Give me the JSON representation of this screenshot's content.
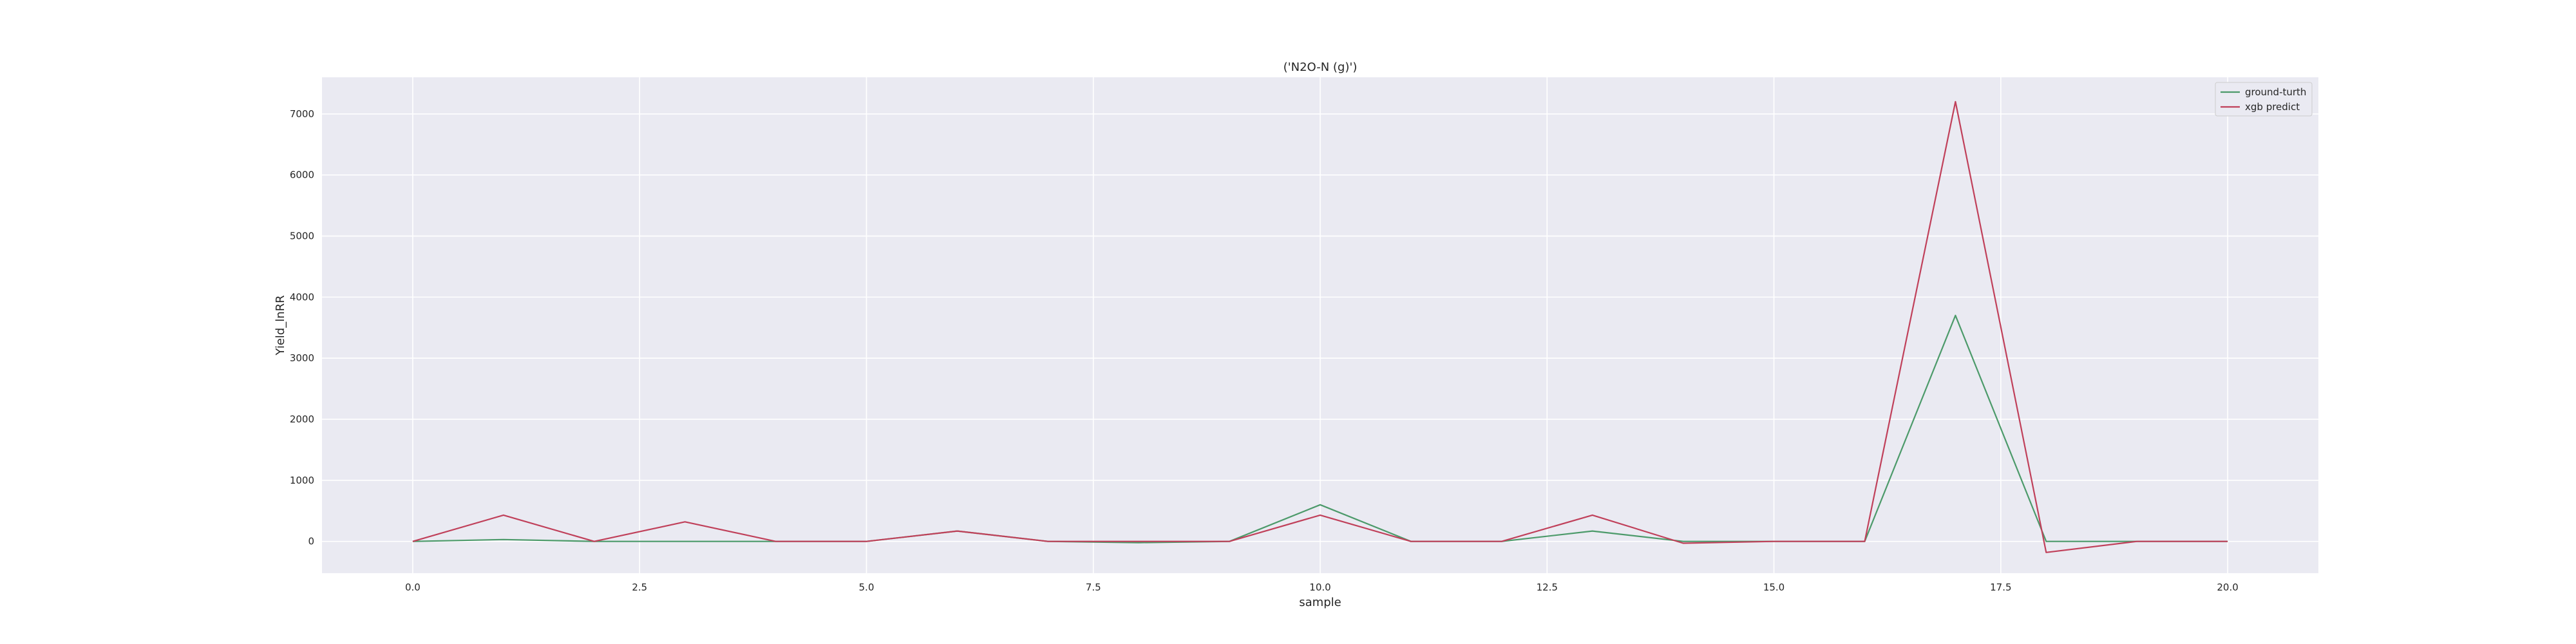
{
  "chart_data": {
    "type": "line",
    "title": "('N2O-N (g)')",
    "xlabel": "sample",
    "ylabel": "Yield_lnRR",
    "xlim": [
      -1,
      21
    ],
    "ylim": [
      -520,
      7600
    ],
    "xticks": [
      0.0,
      2.5,
      5.0,
      7.5,
      10.0,
      12.5,
      15.0,
      17.5,
      20.0
    ],
    "xtick_labels": [
      "0.0",
      "2.5",
      "5.0",
      "7.5",
      "10.0",
      "12.5",
      "15.0",
      "17.5",
      "20.0"
    ],
    "yticks": [
      0,
      1000,
      2000,
      3000,
      4000,
      5000,
      6000,
      7000
    ],
    "ytick_labels": [
      "0",
      "1000",
      "2000",
      "3000",
      "4000",
      "5000",
      "6000",
      "7000"
    ],
    "grid": true,
    "legend_position": "top-right",
    "x": [
      0,
      1,
      2,
      3,
      4,
      5,
      6,
      7,
      8,
      9,
      10,
      11,
      12,
      13,
      14,
      15,
      16,
      17,
      18,
      19,
      20
    ],
    "series": [
      {
        "name": "ground-turth",
        "color": "#4c9a6a",
        "values": [
          0,
          30,
          0,
          0,
          0,
          0,
          170,
          0,
          -20,
          0,
          600,
          0,
          0,
          170,
          0,
          0,
          0,
          3700,
          0,
          0,
          0
        ]
      },
      {
        "name": "xgb predict",
        "color": "#c0405a",
        "values": [
          0,
          430,
          0,
          320,
          0,
          0,
          170,
          0,
          0,
          0,
          430,
          0,
          0,
          430,
          -30,
          0,
          0,
          7200,
          -180,
          0,
          0
        ]
      }
    ]
  }
}
